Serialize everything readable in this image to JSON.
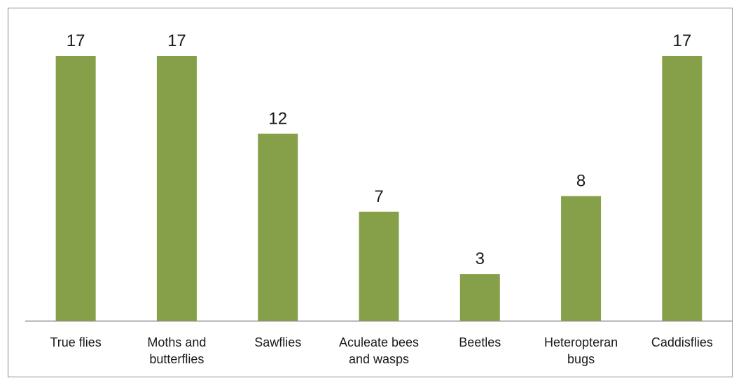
{
  "chart_data": {
    "type": "bar",
    "categories": [
      [
        "True flies"
      ],
      [
        "Moths and",
        "butterflies"
      ],
      [
        "Sawflies"
      ],
      [
        "Aculeate bees",
        "and wasps"
      ],
      [
        "Beetles"
      ],
      [
        "Heteropteran",
        "bugs"
      ],
      [
        "Caddisflies"
      ]
    ],
    "values": [
      17,
      17,
      12,
      7,
      3,
      8,
      17
    ],
    "ylim": [
      0,
      17
    ],
    "grid": false,
    "bar_color": "#86a04a",
    "axis_color": "#8c8c8c",
    "border_color": "#8c8c8c"
  }
}
